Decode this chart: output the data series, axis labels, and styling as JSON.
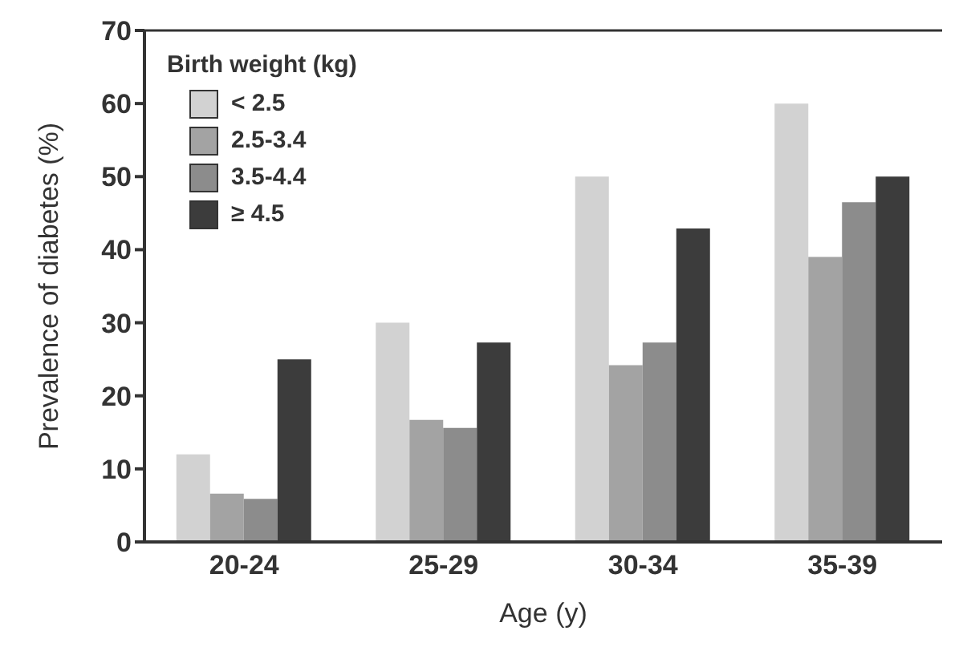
{
  "chart_data": {
    "type": "bar",
    "xlabel": "Age (y)",
    "ylabel": "Prevalence of diabetes (%)",
    "legend_title": "Birth weight (kg)",
    "legend": "top left",
    "categories": [
      "20-24",
      "25-29",
      "30-34",
      "35-39"
    ],
    "ylim": [
      0,
      70
    ],
    "yticks": [
      0,
      10,
      20,
      30,
      40,
      50,
      60,
      70
    ],
    "series": [
      {
        "name": "< 2.5",
        "color": "#d2d2d2",
        "values": [
          12,
          30,
          50,
          60
        ]
      },
      {
        "name": "2.5-3.4",
        "color": "#a3a3a3",
        "values": [
          6.6,
          16.7,
          24.2,
          39
        ]
      },
      {
        "name": "3.5-4.4",
        "color": "#8c8c8c",
        "values": [
          5.9,
          15.6,
          27.3,
          46.5
        ]
      },
      {
        "name": "≥ 4.5",
        "color": "#3c3c3c",
        "values": [
          25,
          27.3,
          42.9,
          50
        ]
      }
    ]
  }
}
